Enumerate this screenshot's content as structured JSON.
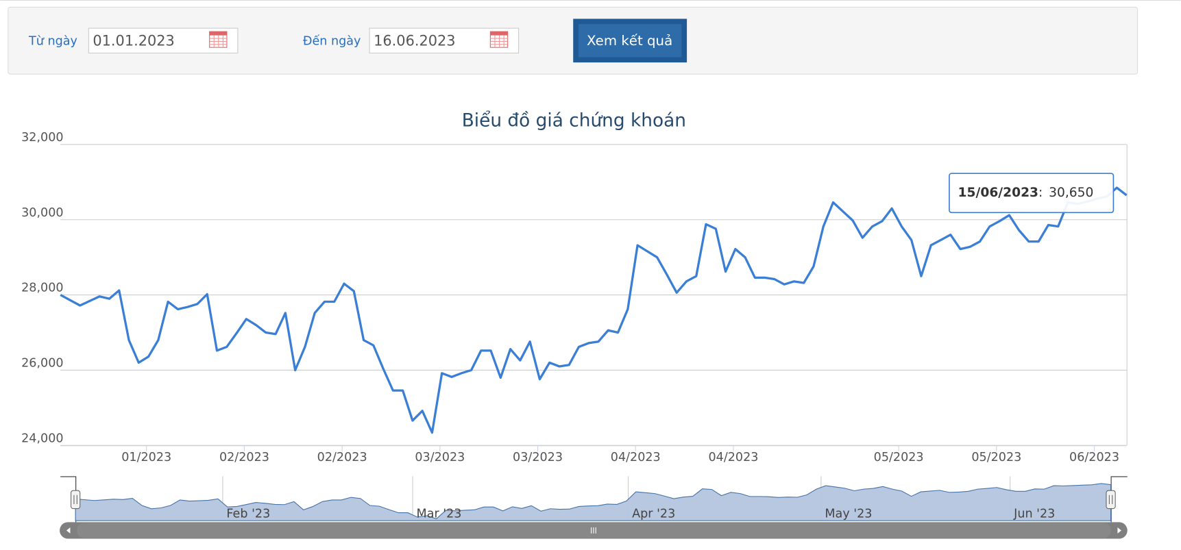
{
  "form": {
    "from_label": "Từ ngày",
    "from_value": "01.01.2023",
    "to_label": "Đến ngày",
    "to_value": "16.06.2023",
    "button": "Xem kết quả"
  },
  "chart_data": {
    "type": "line",
    "title": "Biểu đồ giá chứng khoán",
    "color": "#3a7fd5",
    "grid": true,
    "values": [
      28000,
      27860,
      27720,
      27840,
      27960,
      27900,
      28120,
      26800,
      26200,
      26360,
      26800,
      27820,
      27620,
      27680,
      27760,
      28020,
      26520,
      26620,
      26980,
      27360,
      27200,
      27000,
      26960,
      27520,
      26000,
      26620,
      27520,
      27820,
      27820,
      28300,
      28100,
      26800,
      26660,
      26040,
      25460,
      25460,
      24660,
      24920,
      24340,
      25920,
      25820,
      25920,
      26000,
      26520,
      26520,
      25800,
      26560,
      26260,
      26760,
      25760,
      26200,
      26100,
      26140,
      26620,
      26720,
      26760,
      27060,
      27000,
      27620,
      29320,
      29160,
      29000,
      28540,
      28060,
      28360,
      28500,
      29880,
      29760,
      28620,
      29220,
      29000,
      28460,
      28460,
      28420,
      28280,
      28360,
      28320,
      28760,
      29820,
      30460,
      30220,
      29980,
      29520,
      29820,
      29960,
      30300,
      29820,
      29460,
      28500,
      29320,
      29460,
      29600,
      29220,
      29280,
      29420,
      29820,
      29960,
      30120,
      29720,
      29420,
      29420,
      29860,
      29820,
      30460,
      30420,
      30480,
      30560,
      30620,
      30850,
      30650
    ],
    "xlim": [
      0,
      109
    ],
    "xticks": [
      {
        "value": 8.8,
        "label": "01/2023"
      },
      {
        "value": 18.8,
        "label": "02/2023"
      },
      {
        "value": 28.8,
        "label": "02/2023"
      },
      {
        "value": 38.8,
        "label": "03/2023"
      },
      {
        "value": 48.8,
        "label": "03/2023"
      },
      {
        "value": 58.8,
        "label": "04/2023"
      },
      {
        "value": 68.8,
        "label": "04/2023"
      },
      {
        "value": 85.7,
        "label": "05/2023"
      },
      {
        "value": 95.7,
        "label": "05/2023"
      },
      {
        "value": 105.7,
        "label": "06/2023"
      }
    ],
    "ylim": [
      24000,
      32000
    ],
    "yticks": [
      {
        "value": 24000,
        "label": "24,000"
      },
      {
        "value": 26000,
        "label": "26,000"
      },
      {
        "value": 28000,
        "label": "28,000"
      },
      {
        "value": 30000,
        "label": "30,000"
      },
      {
        "value": 32000,
        "label": "32,000"
      }
    ],
    "tooltip": {
      "date": "15/06/2023",
      "separator": ":",
      "value": 30650,
      "value_label": "30,650"
    },
    "navigator": {
      "color": "#b4c5de",
      "ylim": [
        24000,
        31500
      ],
      "xticks": [
        {
          "value": 15.5,
          "label": "Feb '23"
        },
        {
          "value": 35.5,
          "label": "Mar '23"
        },
        {
          "value": 58.2,
          "label": "Apr '23"
        },
        {
          "value": 78.5,
          "label": "May '23"
        },
        {
          "value": 98.4,
          "label": "Jun '23"
        }
      ]
    }
  }
}
